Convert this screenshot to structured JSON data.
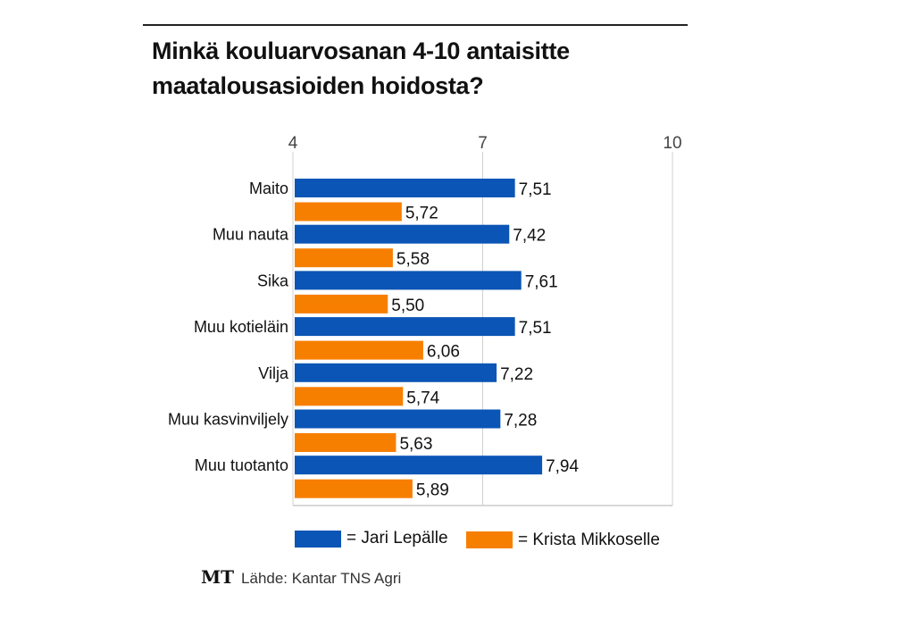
{
  "chart_data": {
    "type": "bar",
    "orientation": "horizontal",
    "title": "Minkä kouluarvosanan 4-10 antaisitte maatalousasioiden hoidosta?",
    "title_lines": [
      "Minkä kouluarvosanan 4-10 antaisitte",
      "maatalousasioiden hoidosta?"
    ],
    "categories": [
      "Maito",
      "Muu nauta",
      "Sika",
      "Muu kotieläin",
      "Vilja",
      "Muu kasvinviljely",
      "Muu tuotanto"
    ],
    "series": [
      {
        "name": "= Jari Lepälle",
        "color": "#0a55b5",
        "values": [
          7.51,
          7.42,
          7.61,
          7.51,
          7.22,
          7.28,
          7.94
        ],
        "labels": [
          "7,51",
          "7,42",
          "7,61",
          "7,51",
          "7,22",
          "7,28",
          "7,94"
        ]
      },
      {
        "name": "= Krista Mikkoselle",
        "color": "#f77f00",
        "values": [
          5.72,
          5.58,
          5.5,
          6.06,
          5.74,
          5.63,
          5.89
        ],
        "labels": [
          "5,72",
          "5,58",
          "5,50",
          "6,06",
          "5,74",
          "5,63",
          "5,89"
        ]
      }
    ],
    "xlim": [
      4,
      10
    ],
    "xticks": [
      4,
      7,
      10
    ],
    "xtick_labels": [
      "4",
      "7",
      "10"
    ],
    "grid": true,
    "legend": "bottom"
  },
  "source": {
    "logo": "MT",
    "text": "Lähde: Kantar TNS Agri"
  }
}
